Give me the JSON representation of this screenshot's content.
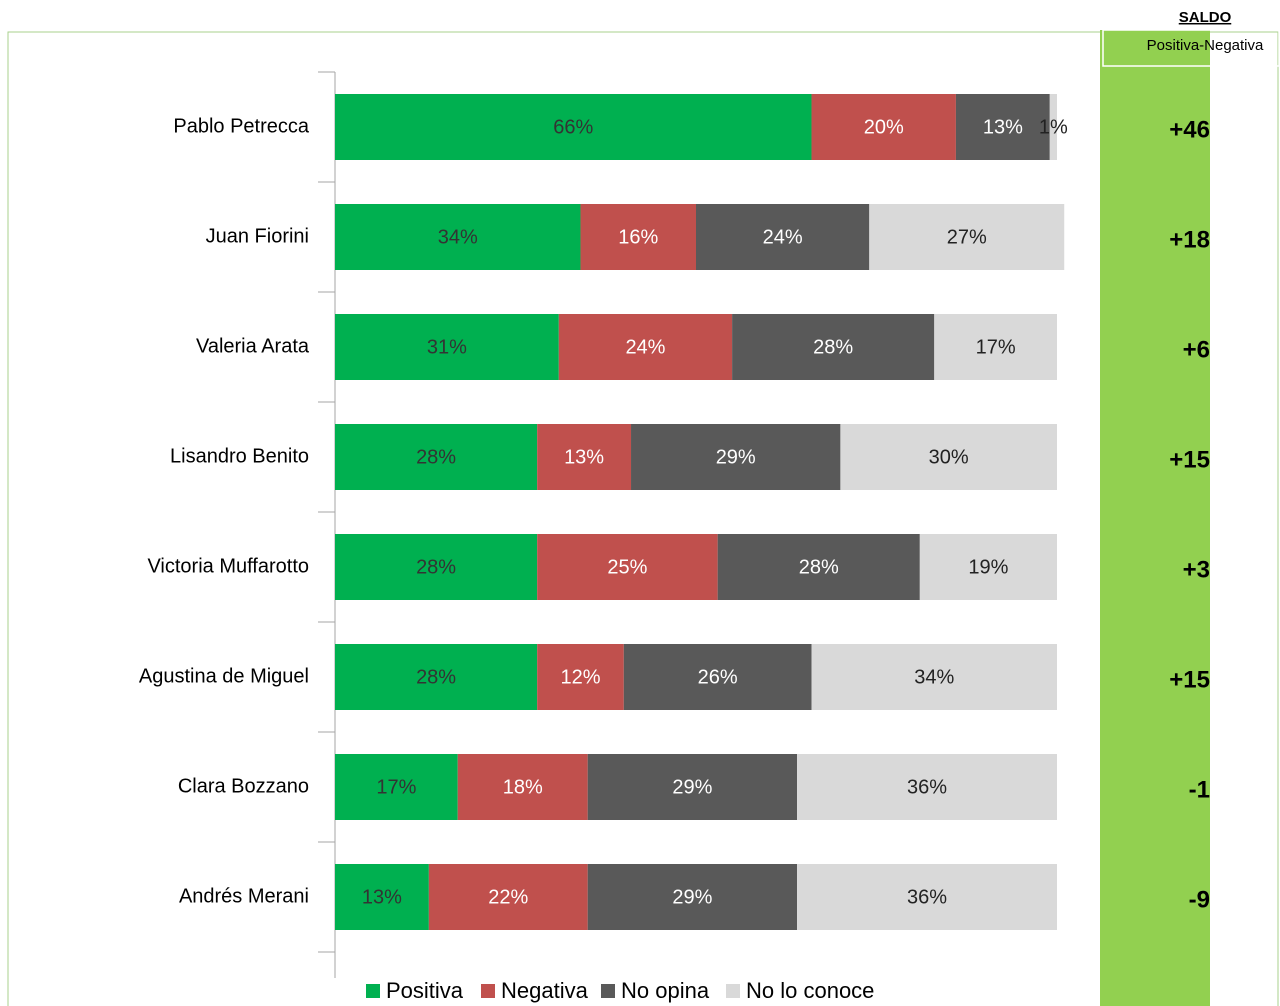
{
  "chart_data": {
    "type": "stacked-bar-horizontal",
    "categories": [
      "Pablo Petrecca",
      "Juan Fiorini",
      "Valeria Arata",
      "Lisandro Benito",
      "Victoria Muffarotto",
      "Agustina de Miguel",
      "Clara Bozzano",
      "Andrés Merani"
    ],
    "xlim": [
      0,
      100
    ],
    "series": [
      {
        "name": "Positiva",
        "color": "#00b050",
        "label_color": "#333333",
        "values": [
          66,
          34,
          31,
          28,
          28,
          28,
          17,
          13
        ],
        "value_labels": [
          "66%",
          "34%",
          "31%",
          "28%",
          "28%",
          "28%",
          "17%",
          "13%"
        ]
      },
      {
        "name": "Negativa",
        "color": "#c0504d",
        "label_color": "#ffffff",
        "values": [
          20,
          16,
          24,
          13,
          25,
          12,
          18,
          22
        ],
        "value_labels": [
          "20%",
          "16%",
          "24%",
          "13%",
          "25%",
          "12%",
          "18%",
          "22%"
        ]
      },
      {
        "name": "No opina",
        "color": "#595959",
        "label_color": "#ffffff",
        "values": [
          13,
          24,
          28,
          29,
          28,
          26,
          29,
          29
        ],
        "value_labels": [
          "13%",
          "24%",
          "28%",
          "29%",
          "28%",
          "26%",
          "29%",
          "29%"
        ]
      },
      {
        "name": "No lo conoce",
        "color": "#d9d9d9",
        "label_color": "#222222",
        "values": [
          1,
          27,
          17,
          30,
          19,
          34,
          36,
          36
        ],
        "value_labels": [
          "1%",
          "27%",
          "17%",
          "30%",
          "19%",
          "34%",
          "36%",
          "36%"
        ]
      }
    ],
    "legend": "bottom",
    "saldo": {
      "title": "SALDO",
      "subtitle": "Positiva-Negativa",
      "color": "#92d050",
      "values": [
        46,
        18,
        6,
        15,
        3,
        15,
        -1,
        -9
      ],
      "value_labels": [
        "+46",
        "+18",
        "+6",
        "+15",
        "+3",
        "+15",
        "-1",
        "-9"
      ]
    }
  }
}
